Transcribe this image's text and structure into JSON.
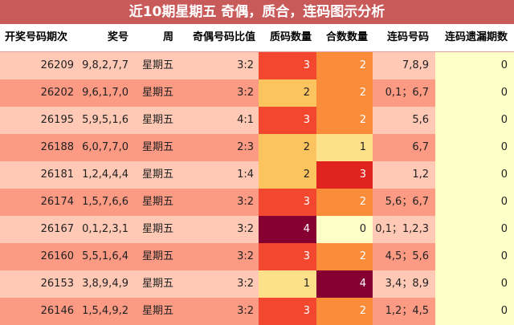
{
  "title": "近10期星期五 奇偶，质合，连码图示分析",
  "headers": [
    "开奖号码期次",
    "奖号",
    "周",
    "奇偶号码比值",
    "质码数量",
    "合数数量",
    "连码号码",
    "连码遗漏期数"
  ],
  "colors": {
    "title_bg": "#c95a5a",
    "row_even": "#ffc9b5",
    "row_odd": "#fc9a84",
    "miss_col": "#ffffc8",
    "count_0": "#ffffc8",
    "count_1": "#fde18a",
    "count_2": "#fcc45e",
    "count_2_composite": "#fb8c3a",
    "count_3": "#f4472f",
    "count_3_composite": "#e0231f",
    "count_4": "#850030"
  },
  "rows": [
    {
      "issue": "26209",
      "numbers": "9,8,2,7,7",
      "weekday": "星期五",
      "odd_even": "3:2",
      "prime": 3,
      "composite": 2,
      "consecutive": "7,8,9",
      "miss": 0
    },
    {
      "issue": "26202",
      "numbers": "9,6,1,7,0",
      "weekday": "星期五",
      "odd_even": "3:2",
      "prime": 2,
      "composite": 2,
      "consecutive": "0,1；6,7",
      "miss": 0
    },
    {
      "issue": "26195",
      "numbers": "5,9,5,1,6",
      "weekday": "星期五",
      "odd_even": "4:1",
      "prime": 3,
      "composite": 2,
      "consecutive": "5,6",
      "miss": 0
    },
    {
      "issue": "26188",
      "numbers": "6,0,7,7,0",
      "weekday": "星期五",
      "odd_even": "2:3",
      "prime": 2,
      "composite": 1,
      "consecutive": "6,7",
      "miss": 0
    },
    {
      "issue": "26181",
      "numbers": "1,2,4,4,4",
      "weekday": "星期五",
      "odd_even": "1:4",
      "prime": 2,
      "composite": 3,
      "consecutive": "1,2",
      "miss": 0
    },
    {
      "issue": "26174",
      "numbers": "1,5,7,6,6",
      "weekday": "星期五",
      "odd_even": "3:2",
      "prime": 3,
      "composite": 2,
      "consecutive": "5,6；6,7",
      "miss": 0
    },
    {
      "issue": "26167",
      "numbers": "0,1,2,3,1",
      "weekday": "星期五",
      "odd_even": "3:2",
      "prime": 4,
      "composite": 0,
      "consecutive": "0,1；1,2,3",
      "miss": 0
    },
    {
      "issue": "26160",
      "numbers": "5,5,1,6,4",
      "weekday": "星期五",
      "odd_even": "3:2",
      "prime": 3,
      "composite": 2,
      "consecutive": "4,5；5,6",
      "miss": 0
    },
    {
      "issue": "26153",
      "numbers": "3,8,9,4,9",
      "weekday": "星期五",
      "odd_even": "3:2",
      "prime": 1,
      "composite": 4,
      "consecutive": "3,4；8,9",
      "miss": 0
    },
    {
      "issue": "26146",
      "numbers": "1,5,4,9,2",
      "weekday": "星期五",
      "odd_even": "3:2",
      "prime": 3,
      "composite": 2,
      "consecutive": "1,2；4,5",
      "miss": 0
    }
  ],
  "chart_data": {
    "type": "table",
    "title": "近10期星期五 奇偶，质合，连码图示分析",
    "columns": [
      "开奖号码期次",
      "奖号",
      "周",
      "奇偶号码比值",
      "质码数量",
      "合数数量",
      "连码号码",
      "连码遗漏期数"
    ],
    "series": [
      {
        "name": "质码数量",
        "values": [
          3,
          2,
          3,
          2,
          2,
          3,
          4,
          3,
          1,
          3
        ]
      },
      {
        "name": "合数数量",
        "values": [
          2,
          2,
          2,
          1,
          3,
          2,
          0,
          2,
          4,
          2
        ]
      },
      {
        "name": "连码遗漏期数",
        "values": [
          0,
          0,
          0,
          0,
          0,
          0,
          0,
          0,
          0,
          0
        ]
      }
    ],
    "categories": [
      "26209",
      "26202",
      "26195",
      "26188",
      "26181",
      "26174",
      "26167",
      "26160",
      "26153",
      "26146"
    ]
  }
}
